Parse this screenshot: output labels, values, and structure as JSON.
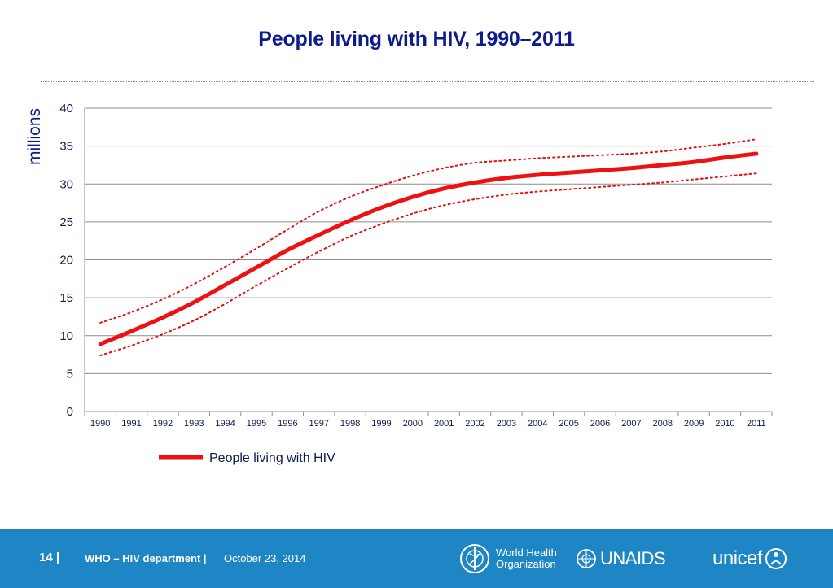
{
  "slide": {
    "title": "People living with HIV, 1990–2011"
  },
  "footer": {
    "page_number": "14",
    "separator": "|",
    "department": "WHO – HIV department",
    "date": "October 23, 2014",
    "logos": {
      "who": {
        "text_line1": "World Health",
        "text_line2": "Organization",
        "icon": "who-emblem-icon"
      },
      "unaids": {
        "text": "UNAIDS",
        "icon": "un-emblem-icon"
      },
      "unicef": {
        "text": "unicef",
        "icon": "unicef-emblem-icon"
      }
    },
    "background_color": "#1f86c6"
  },
  "chart_data": {
    "type": "line",
    "title": "",
    "xlabel": "",
    "ylabel": "millions",
    "categories": [
      "1990",
      "1991",
      "1992",
      "1993",
      "1994",
      "1995",
      "1996",
      "1997",
      "1998",
      "1999",
      "2000",
      "2001",
      "2002",
      "2003",
      "2004",
      "2005",
      "2006",
      "2007",
      "2008",
      "2009",
      "2010",
      "2011"
    ],
    "ylim": [
      0,
      40
    ],
    "yticks": [
      0,
      5,
      10,
      15,
      20,
      25,
      30,
      35,
      40
    ],
    "grid": true,
    "legend_position": "bottom-left",
    "series": [
      {
        "name": "People living with HIV",
        "style": "solid",
        "color": "#ee1111",
        "values": [
          8.9,
          10.6,
          12.4,
          14.4,
          16.7,
          19.0,
          21.3,
          23.3,
          25.2,
          26.9,
          28.3,
          29.4,
          30.2,
          30.8,
          31.2,
          31.5,
          31.8,
          32.1,
          32.5,
          32.9,
          33.5,
          34.0
        ]
      },
      {
        "style": "dotted",
        "color": "#dd1111",
        "values": [
          11.7,
          13.1,
          14.8,
          16.8,
          19.1,
          21.5,
          24.0,
          26.4,
          28.3,
          29.8,
          31.1,
          32.1,
          32.8,
          33.1,
          33.4,
          33.6,
          33.8,
          34.0,
          34.3,
          34.8,
          35.3,
          35.9
        ]
      },
      {
        "style": "dotted",
        "color": "#dd1111",
        "values": [
          7.4,
          8.7,
          10.2,
          12.0,
          14.2,
          16.6,
          18.9,
          21.1,
          23.1,
          24.7,
          26.1,
          27.2,
          28.0,
          28.6,
          29.0,
          29.3,
          29.6,
          29.9,
          30.2,
          30.6,
          31.0,
          31.4
        ]
      }
    ]
  }
}
